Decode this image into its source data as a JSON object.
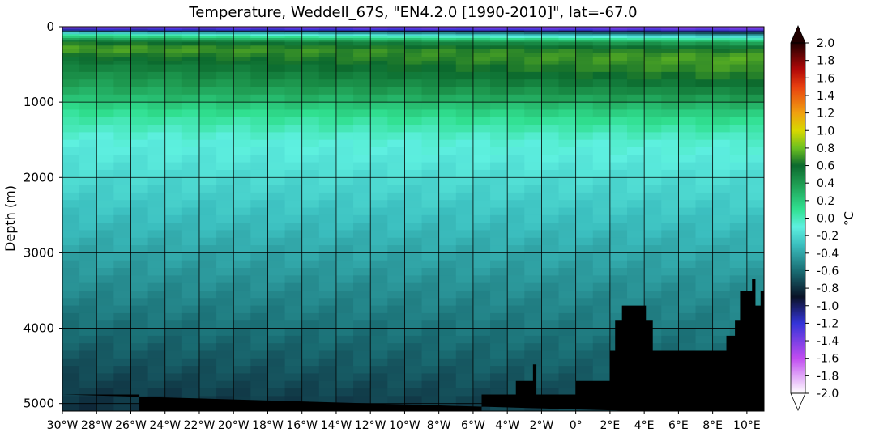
{
  "chart_data": {
    "type": "heatmap",
    "title": "Temperature, Weddell_67S, \"EN4.2.0 [1990-2010]\", lat=-67.0",
    "xlabel": "",
    "ylabel": "Depth (m)",
    "x_range": [
      -30,
      11
    ],
    "y_range": [
      0,
      5100
    ],
    "y_inverted": true,
    "x_ticks": [
      {
        "value": -30,
        "label": "30°W"
      },
      {
        "value": -28,
        "label": "28°W"
      },
      {
        "value": -26,
        "label": "26°W"
      },
      {
        "value": -24,
        "label": "24°W"
      },
      {
        "value": -22,
        "label": "22°W"
      },
      {
        "value": -20,
        "label": "20°W"
      },
      {
        "value": -18,
        "label": "18°W"
      },
      {
        "value": -16,
        "label": "16°W"
      },
      {
        "value": -14,
        "label": "14°W"
      },
      {
        "value": -12,
        "label": "12°W"
      },
      {
        "value": -10,
        "label": "10°W"
      },
      {
        "value": -8,
        "label": "8°W"
      },
      {
        "value": -6,
        "label": "6°W"
      },
      {
        "value": -4,
        "label": "4°W"
      },
      {
        "value": -2,
        "label": "2°W"
      },
      {
        "value": 0,
        "label": "0°"
      },
      {
        "value": 2,
        "label": "2°E"
      },
      {
        "value": 4,
        "label": "4°E"
      },
      {
        "value": 6,
        "label": "6°E"
      },
      {
        "value": 8,
        "label": "8°E"
      },
      {
        "value": 10,
        "label": "10°E"
      }
    ],
    "y_ticks": [
      {
        "value": 0,
        "label": "0"
      },
      {
        "value": 1000,
        "label": "1000"
      },
      {
        "value": 2000,
        "label": "2000"
      },
      {
        "value": 3000,
        "label": "3000"
      },
      {
        "value": 4000,
        "label": "4000"
      },
      {
        "value": 5000,
        "label": "5000"
      }
    ],
    "grid": true,
    "colorbar": {
      "label": "°C",
      "range": [
        -2.0,
        2.0
      ],
      "extend": "both",
      "ticks": [
        "2.0",
        "1.8",
        "1.6",
        "1.4",
        "1.2",
        "1.0",
        "0.8",
        "0.6",
        "0.4",
        "0.2",
        "0.0",
        "-0.2",
        "-0.4",
        "-0.6",
        "-0.8",
        "-1.0",
        "-1.2",
        "-1.4",
        "-1.6",
        "-1.8",
        "-2.0"
      ],
      "colormap_stops": [
        {
          "value": -2.0,
          "color": "#ffffff"
        },
        {
          "value": -1.6,
          "color": "#c04cf0"
        },
        {
          "value": -1.2,
          "color": "#3434d8"
        },
        {
          "value": -0.9,
          "color": "#0a1226"
        },
        {
          "value": -0.6,
          "color": "#1a6e74"
        },
        {
          "value": -0.3,
          "color": "#3cc0c0"
        },
        {
          "value": -0.1,
          "color": "#5ef0e0"
        },
        {
          "value": 0.1,
          "color": "#30e090"
        },
        {
          "value": 0.4,
          "color": "#1e9a50"
        },
        {
          "value": 0.6,
          "color": "#0c6a2e"
        },
        {
          "value": 0.8,
          "color": "#6cc020"
        },
        {
          "value": 1.0,
          "color": "#d8d800"
        },
        {
          "value": 1.2,
          "color": "#f0a010"
        },
        {
          "value": 1.5,
          "color": "#e84010"
        },
        {
          "value": 1.7,
          "color": "#b00808"
        },
        {
          "value": 2.0,
          "color": "#200000"
        }
      ]
    },
    "temperature_profile": {
      "depths": [
        0,
        50,
        100,
        150,
        200,
        300,
        400,
        600,
        800,
        1000,
        1200,
        1500,
        2000,
        2500,
        3000,
        3500,
        4000,
        4500,
        5000
      ],
      "west_values": [
        -1.6,
        -1.0,
        0.0,
        0.3,
        0.6,
        0.75,
        0.6,
        0.45,
        0.35,
        0.2,
        0.05,
        -0.1,
        -0.2,
        -0.3,
        -0.4,
        -0.5,
        -0.6,
        -0.7,
        -0.8
      ],
      "east_values": [
        -1.6,
        -1.2,
        -0.6,
        -0.1,
        0.3,
        0.6,
        0.75,
        0.7,
        0.55,
        0.35,
        0.15,
        -0.05,
        -0.18,
        -0.28,
        -0.38,
        -0.48,
        -0.55,
        -0.62,
        -0.7
      ]
    },
    "bathymetry": [
      [
        -30,
        4880
      ],
      [
        -25.5,
        4880
      ],
      [
        -25.5,
        5150
      ],
      [
        -5.5,
        5150
      ],
      [
        -5.5,
        4880
      ],
      [
        -3.5,
        4880
      ],
      [
        -3.5,
        4700
      ],
      [
        -2.5,
        4700
      ],
      [
        -2.5,
        4480
      ],
      [
        -2.3,
        4480
      ],
      [
        -2.3,
        4880
      ],
      [
        0,
        4880
      ],
      [
        0,
        4700
      ],
      [
        2,
        4700
      ],
      [
        2,
        4300
      ],
      [
        2.3,
        4300
      ],
      [
        2.3,
        3900
      ],
      [
        2.7,
        3900
      ],
      [
        2.7,
        3700
      ],
      [
        4.1,
        3700
      ],
      [
        4.1,
        3900
      ],
      [
        4.5,
        3900
      ],
      [
        4.5,
        4300
      ],
      [
        8.8,
        4300
      ],
      [
        8.8,
        4100
      ],
      [
        9.3,
        4100
      ],
      [
        9.3,
        3900
      ],
      [
        9.6,
        3900
      ],
      [
        9.6,
        3500
      ],
      [
        10.3,
        3500
      ],
      [
        10.3,
        3350
      ],
      [
        10.5,
        3350
      ],
      [
        10.5,
        3700
      ],
      [
        10.8,
        3700
      ],
      [
        10.8,
        3500
      ],
      [
        11,
        3500
      ],
      [
        11,
        5150
      ]
    ]
  }
}
